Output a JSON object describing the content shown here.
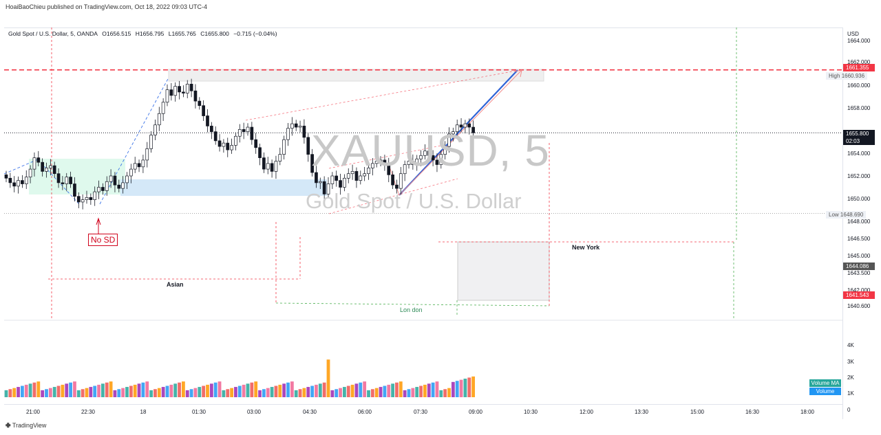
{
  "header": {
    "publisher": "HoaiBaoChieu published on TradingView.com, Oct 18, 2022 09:03 UTC-4"
  },
  "legend": {
    "symbol": "Gold Spot / U.S. Dollar, 5, OANDA",
    "open": "O1656.515",
    "high": "H1656.795",
    "low": "L1655.765",
    "close": "C1655.800",
    "change": "−0.715 (−0.04%)"
  },
  "watermark": {
    "ticker": "XAUUSD, 5",
    "name": "Gold Spot / U.S. Dollar"
  },
  "price_axis": {
    "unit": "USD",
    "ticks": [
      "1664.000",
      "1662.000",
      "1660.000",
      "1658.000",
      "1654.000",
      "1652.000",
      "1650.000",
      "1648.000",
      "1646.500",
      "1645.000",
      "1643.500",
      "1642.000",
      "1640.600"
    ],
    "tags": {
      "red_line": "1661.355",
      "high_label": "High",
      "high_value": "1660.936",
      "last_price": "1655.800",
      "countdown": "02:03",
      "low_label": "Low",
      "low_value": "1648.690",
      "gray_tag": "1644.086",
      "red_tag": "1641.543"
    },
    "colors": {
      "red": "#f23645",
      "dark": "#131722",
      "gray": "#555555"
    }
  },
  "volume_axis": {
    "ticks": [
      "4K",
      "3K",
      "2K",
      "1K",
      "0"
    ],
    "ma_label": "Volume MA",
    "vol_label": "Volume"
  },
  "time_axis": {
    "ticks": [
      "21:00",
      "22:30",
      "18",
      "01:30",
      "03:00",
      "04:30",
      "06:00",
      "07:30",
      "09:00",
      "10:30",
      "12:00",
      "13:30",
      "15:00",
      "16:30",
      "18:00"
    ]
  },
  "annotations": {
    "no_sd": "No SD",
    "asian": "Asian",
    "london": "Lon don",
    "new_york": "New York"
  },
  "footer": {
    "brand": "TradingView"
  },
  "chart_data": {
    "type": "candlestick",
    "symbol": "XAUUSD",
    "interval": "5",
    "ylim": [
      1640.6,
      1664.0
    ],
    "levels": {
      "red_dashed": 1661.355,
      "high": 1660.936,
      "last": 1655.8,
      "low": 1648.69
    },
    "closes": [
      1651.8,
      1651.4,
      1651.1,
      1651.6,
      1651.3,
      1651.9,
      1652.6,
      1653.6,
      1653.2,
      1652.4,
      1652.7,
      1652.9,
      1652.2,
      1651.4,
      1651.3,
      1651.9,
      1651.3,
      1650.2,
      1649.7,
      1649.9,
      1650.1,
      1649.9,
      1650.6,
      1651.0,
      1650.7,
      1651.5,
      1652.0,
      1651.2,
      1650.9,
      1651.4,
      1652.0,
      1652.6,
      1653.1,
      1652.8,
      1653.4,
      1654.4,
      1655.6,
      1656.5,
      1657.5,
      1658.5,
      1659.6,
      1659.1,
      1659.9,
      1659.4,
      1659.3,
      1660.1,
      1659.5,
      1658.6,
      1658.2,
      1657.3,
      1656.4,
      1655.9,
      1655.1,
      1654.6,
      1654.9,
      1654.3,
      1654.7,
      1655.5,
      1656.1,
      1655.9,
      1656.3,
      1655.2,
      1654.5,
      1653.6,
      1652.6,
      1653.1,
      1652.4,
      1653.3,
      1653.9,
      1655.2,
      1656.2,
      1656.6,
      1656.3,
      1656.4,
      1655.4,
      1653.9,
      1652.3,
      1651.4,
      1651.5,
      1650.4,
      1651.3,
      1652.0,
      1651.6,
      1651.0,
      1651.8,
      1652.2,
      1652.4,
      1651.6,
      1652.0,
      1652.2,
      1652.7,
      1653.1,
      1653.3,
      1653.4,
      1653.0,
      1652.1,
      1651.2,
      1650.9,
      1652.2,
      1653.0,
      1653.3,
      1653.0,
      1653.5,
      1653.8,
      1654.2,
      1653.8,
      1653.4,
      1653.0,
      1653.9,
      1654.6,
      1655.7,
      1655.9,
      1656.5,
      1656.3,
      1656.6,
      1656.3,
      1655.8
    ],
    "volume_scale_max": 4000
  }
}
